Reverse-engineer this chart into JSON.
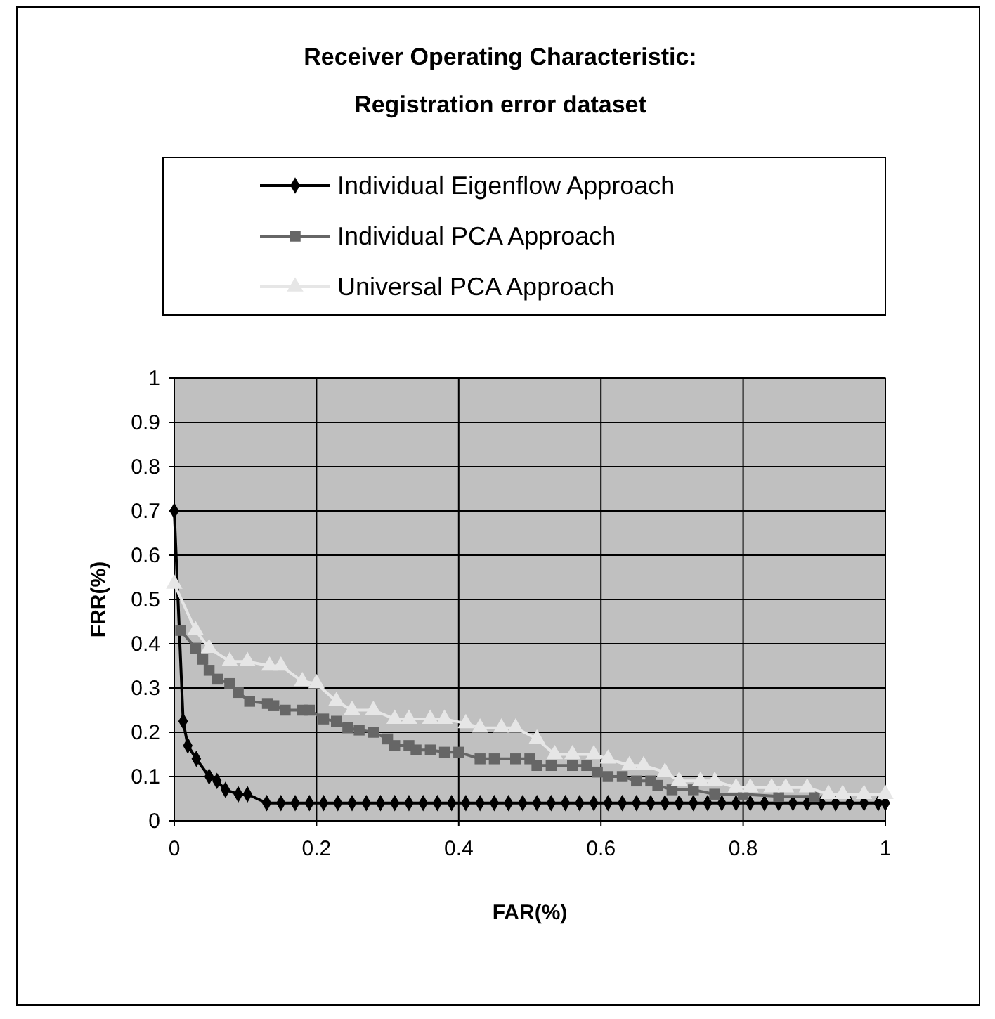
{
  "chart_data": {
    "type": "line",
    "title": "Receiver Operating Characteristic:\nRegistration error dataset",
    "xlabel": "FAR(%)",
    "ylabel": "FRR(%)",
    "xlim": [
      0,
      1
    ],
    "ylim": [
      0,
      1
    ],
    "xticks": [
      0,
      0.2,
      0.4,
      0.6,
      0.8,
      1
    ],
    "yticks": [
      0,
      0.1,
      0.2,
      0.3,
      0.4,
      0.5,
      0.6,
      0.7,
      0.8,
      0.9,
      1
    ],
    "grid": true,
    "legend": "top",
    "line_style": "solid",
    "series": [
      {
        "name": "Individual Eigenflow Approach",
        "color": "#000000",
        "marker": "diamond",
        "x": [
          0,
          0.0125,
          0.019,
          0.031,
          0.049,
          0.06,
          0.072,
          0.09,
          0.103,
          0.13,
          0.15,
          0.17,
          0.19,
          0.21,
          0.23,
          0.25,
          0.27,
          0.29,
          0.31,
          0.33,
          0.35,
          0.37,
          0.39,
          0.41,
          0.43,
          0.45,
          0.47,
          0.49,
          0.51,
          0.53,
          0.55,
          0.57,
          0.59,
          0.61,
          0.63,
          0.65,
          0.67,
          0.69,
          0.71,
          0.73,
          0.75,
          0.77,
          0.79,
          0.81,
          0.83,
          0.85,
          0.87,
          0.89,
          0.91,
          0.93,
          0.95,
          0.97,
          0.99,
          1.0
        ],
        "values": [
          0.7,
          0.225,
          0.17,
          0.14,
          0.1,
          0.09,
          0.07,
          0.06,
          0.06,
          0.04,
          0.04,
          0.04,
          0.04,
          0.04,
          0.04,
          0.04,
          0.04,
          0.04,
          0.04,
          0.04,
          0.04,
          0.04,
          0.04,
          0.04,
          0.04,
          0.04,
          0.04,
          0.04,
          0.04,
          0.04,
          0.04,
          0.04,
          0.04,
          0.04,
          0.04,
          0.04,
          0.04,
          0.04,
          0.04,
          0.04,
          0.04,
          0.04,
          0.04,
          0.04,
          0.04,
          0.04,
          0.04,
          0.04,
          0.04,
          0.04,
          0.04,
          0.04,
          0.04,
          0.04
        ]
      },
      {
        "name": "Individual PCA Approach",
        "color": "#666666",
        "marker": "square",
        "x": [
          0.009,
          0.03,
          0.04,
          0.049,
          0.061,
          0.078,
          0.09,
          0.106,
          0.131,
          0.14,
          0.156,
          0.18,
          0.19,
          0.21,
          0.228,
          0.244,
          0.26,
          0.28,
          0.3,
          0.31,
          0.33,
          0.34,
          0.36,
          0.38,
          0.4,
          0.43,
          0.45,
          0.48,
          0.5,
          0.51,
          0.53,
          0.56,
          0.58,
          0.595,
          0.61,
          0.63,
          0.65,
          0.67,
          0.68,
          0.7,
          0.73,
          0.76,
          0.8,
          0.85,
          0.9
        ],
        "values": [
          0.43,
          0.39,
          0.365,
          0.34,
          0.32,
          0.31,
          0.29,
          0.27,
          0.265,
          0.26,
          0.25,
          0.25,
          0.25,
          0.23,
          0.225,
          0.21,
          0.205,
          0.2,
          0.185,
          0.17,
          0.17,
          0.16,
          0.16,
          0.155,
          0.155,
          0.14,
          0.14,
          0.14,
          0.14,
          0.125,
          0.125,
          0.125,
          0.125,
          0.11,
          0.1,
          0.1,
          0.09,
          0.09,
          0.08,
          0.07,
          0.07,
          0.06,
          0.06,
          0.055,
          0.055
        ]
      },
      {
        "name": "Universal PCA Approach",
        "color": "#e6e6e6",
        "marker": "triangle",
        "x": [
          0,
          0.03,
          0.049,
          0.078,
          0.103,
          0.134,
          0.15,
          0.18,
          0.2,
          0.228,
          0.25,
          0.28,
          0.31,
          0.33,
          0.36,
          0.38,
          0.41,
          0.43,
          0.46,
          0.48,
          0.51,
          0.535,
          0.56,
          0.59,
          0.61,
          0.64,
          0.66,
          0.69,
          0.71,
          0.74,
          0.76,
          0.79,
          0.81,
          0.84,
          0.86,
          0.89,
          0.92,
          0.94,
          0.97,
          1.0
        ],
        "values": [
          0.535,
          0.43,
          0.39,
          0.36,
          0.36,
          0.35,
          0.35,
          0.315,
          0.31,
          0.27,
          0.25,
          0.25,
          0.23,
          0.23,
          0.23,
          0.23,
          0.22,
          0.21,
          0.21,
          0.21,
          0.185,
          0.15,
          0.15,
          0.15,
          0.14,
          0.125,
          0.125,
          0.11,
          0.09,
          0.09,
          0.09,
          0.075,
          0.075,
          0.075,
          0.075,
          0.075,
          0.06,
          0.06,
          0.06,
          0.06
        ]
      }
    ]
  }
}
